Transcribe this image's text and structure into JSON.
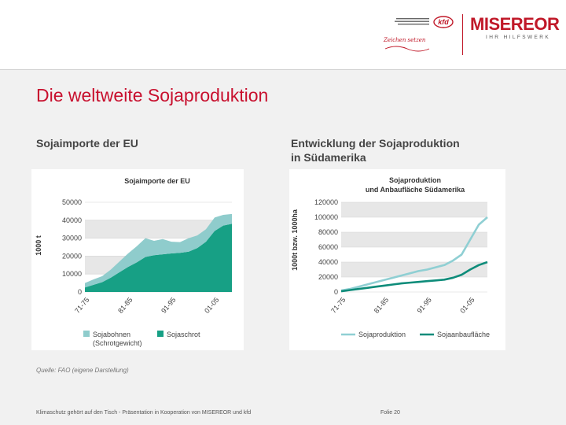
{
  "slide": {
    "title": "Die weltweite Sojaproduktion",
    "left_heading": "Sojaimporte der EU",
    "right_heading_line1": "Entwicklung der Sojaproduktion",
    "right_heading_line2": "in Südamerika",
    "source": "Quelle: FAO (eigene Darstellung)",
    "footer": "Klimaschutz gehört auf den Tisch - Präsentation in Kooperation von MISEREOR und kfd",
    "slide_number": "Folie 20"
  },
  "logos": {
    "kfd_text": "kfd",
    "kfd_tagline": "Zeichen setzen",
    "misereor_name": "MISEREOR",
    "misereor_sub": "IHR HILFSWERK"
  },
  "colors": {
    "title_red": "#c8102e",
    "sojabohnen": "#8fcccc",
    "sojaschrot": "#17a085",
    "sojaproduktion": "#8fcfd3",
    "anbauflaeche": "#0e8c7a"
  },
  "chart_data": [
    {
      "type": "area",
      "stacked": true,
      "title": "Sojaimporte der EU",
      "ylabel": "1000 t",
      "ylim": [
        0,
        50000
      ],
      "yticks": [
        0,
        10000,
        20000,
        30000,
        40000,
        50000
      ],
      "x": [
        "1971",
        "1973",
        "1975",
        "1977",
        "1979",
        "1981",
        "1983",
        "1985",
        "1987",
        "1989",
        "1991",
        "1993",
        "1995",
        "1997",
        "1999",
        "2001",
        "2003",
        "2005"
      ],
      "xtick_labels": [
        "71-75",
        "81-85",
        "91-95",
        "01-05"
      ],
      "grid": true,
      "legend": "bottom",
      "series": [
        {
          "name": "Sojaschrot",
          "color": "#17a085",
          "values": [
            2500,
            4000,
            5500,
            8000,
            11000,
            14000,
            16500,
            19500,
            20500,
            21000,
            21500,
            21800,
            22500,
            24500,
            28000,
            34000,
            37000,
            38000
          ]
        },
        {
          "name": "Sojabohnen (Schrotgewicht)",
          "color": "#8fcccc",
          "values": [
            2500,
            3000,
            3300,
            4500,
            6000,
            7500,
            9000,
            10500,
            8000,
            8500,
            6500,
            6000,
            7500,
            7000,
            7000,
            7500,
            6000,
            5500
          ]
        }
      ]
    },
    {
      "type": "line",
      "title_line1": "Sojaproduktion",
      "title_line2": "und Anbaufläche Südamerika",
      "ylabel": "1000t bzw. 1000ha",
      "ylim": [
        0,
        120000
      ],
      "yticks": [
        0,
        20000,
        40000,
        60000,
        80000,
        100000,
        120000
      ],
      "x": [
        "1971",
        "1973",
        "1975",
        "1977",
        "1979",
        "1981",
        "1983",
        "1985",
        "1987",
        "1989",
        "1991",
        "1993",
        "1995",
        "1997",
        "1999",
        "2001",
        "2003",
        "2005"
      ],
      "xtick_labels": [
        "71-75",
        "81-85",
        "91-95",
        "01-05"
      ],
      "grid": true,
      "legend": "bottom",
      "series": [
        {
          "name": "Sojaproduktion",
          "color": "#8fcfd3",
          "values": [
            2000,
            4000,
            7000,
            10000,
            13000,
            16000,
            19000,
            22000,
            25000,
            28000,
            30000,
            33000,
            36000,
            42000,
            50000,
            70000,
            90000,
            100000
          ]
        },
        {
          "name": "Sojaanbaufläche",
          "color": "#0e8c7a",
          "values": [
            1000,
            2500,
            4000,
            5500,
            7000,
            8500,
            10000,
            11500,
            12500,
            13500,
            14500,
            15500,
            16500,
            19000,
            23000,
            30000,
            36000,
            40000
          ]
        }
      ]
    }
  ]
}
